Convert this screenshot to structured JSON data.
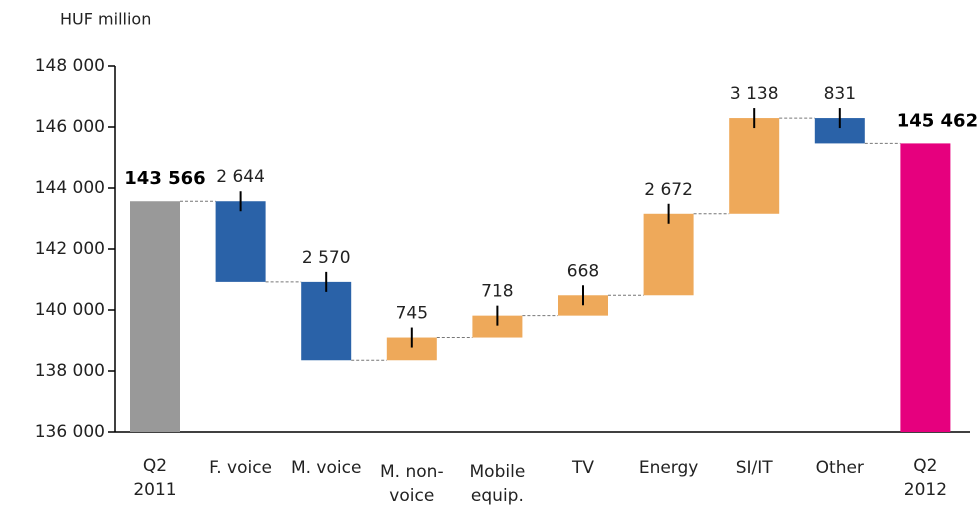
{
  "chart_data": {
    "type": "waterfall",
    "y_axis_label": "HUF million",
    "categories": [
      "Q2\n2011",
      "F. voice",
      "M. voice",
      "M. non-\nvoice",
      "Mobile\nequip.",
      "TV",
      "Energy",
      "SI/IT",
      "Other",
      "Q2\n2012"
    ],
    "measure": [
      "total",
      "relative",
      "relative",
      "relative",
      "relative",
      "relative",
      "relative",
      "relative",
      "relative",
      "total"
    ],
    "values": [
      143566,
      -2644,
      -2570,
      745,
      718,
      668,
      2672,
      3138,
      -831,
      145462
    ],
    "value_labels": [
      "143 566",
      "2 644",
      "2 570",
      "745",
      "718",
      "668",
      "2 672",
      "3 138",
      "831",
      "145 462"
    ],
    "colors": [
      "#999999",
      "#2a62a8",
      "#2a62a8",
      "#eea95a",
      "#eea95a",
      "#eea95a",
      "#eea95a",
      "#eea95a",
      "#2a62a8",
      "#e6007e"
    ],
    "ylim": [
      136000,
      148000
    ],
    "yticks": [
      {
        "value": 136000,
        "label": "136 000"
      },
      {
        "value": 138000,
        "label": "138 000"
      },
      {
        "value": 140000,
        "label": "140 000"
      },
      {
        "value": 142000,
        "label": "142 000"
      },
      {
        "value": 144000,
        "label": "144 000"
      },
      {
        "value": 146000,
        "label": "146 000"
      },
      {
        "value": 148000,
        "label": "148 000"
      }
    ]
  }
}
